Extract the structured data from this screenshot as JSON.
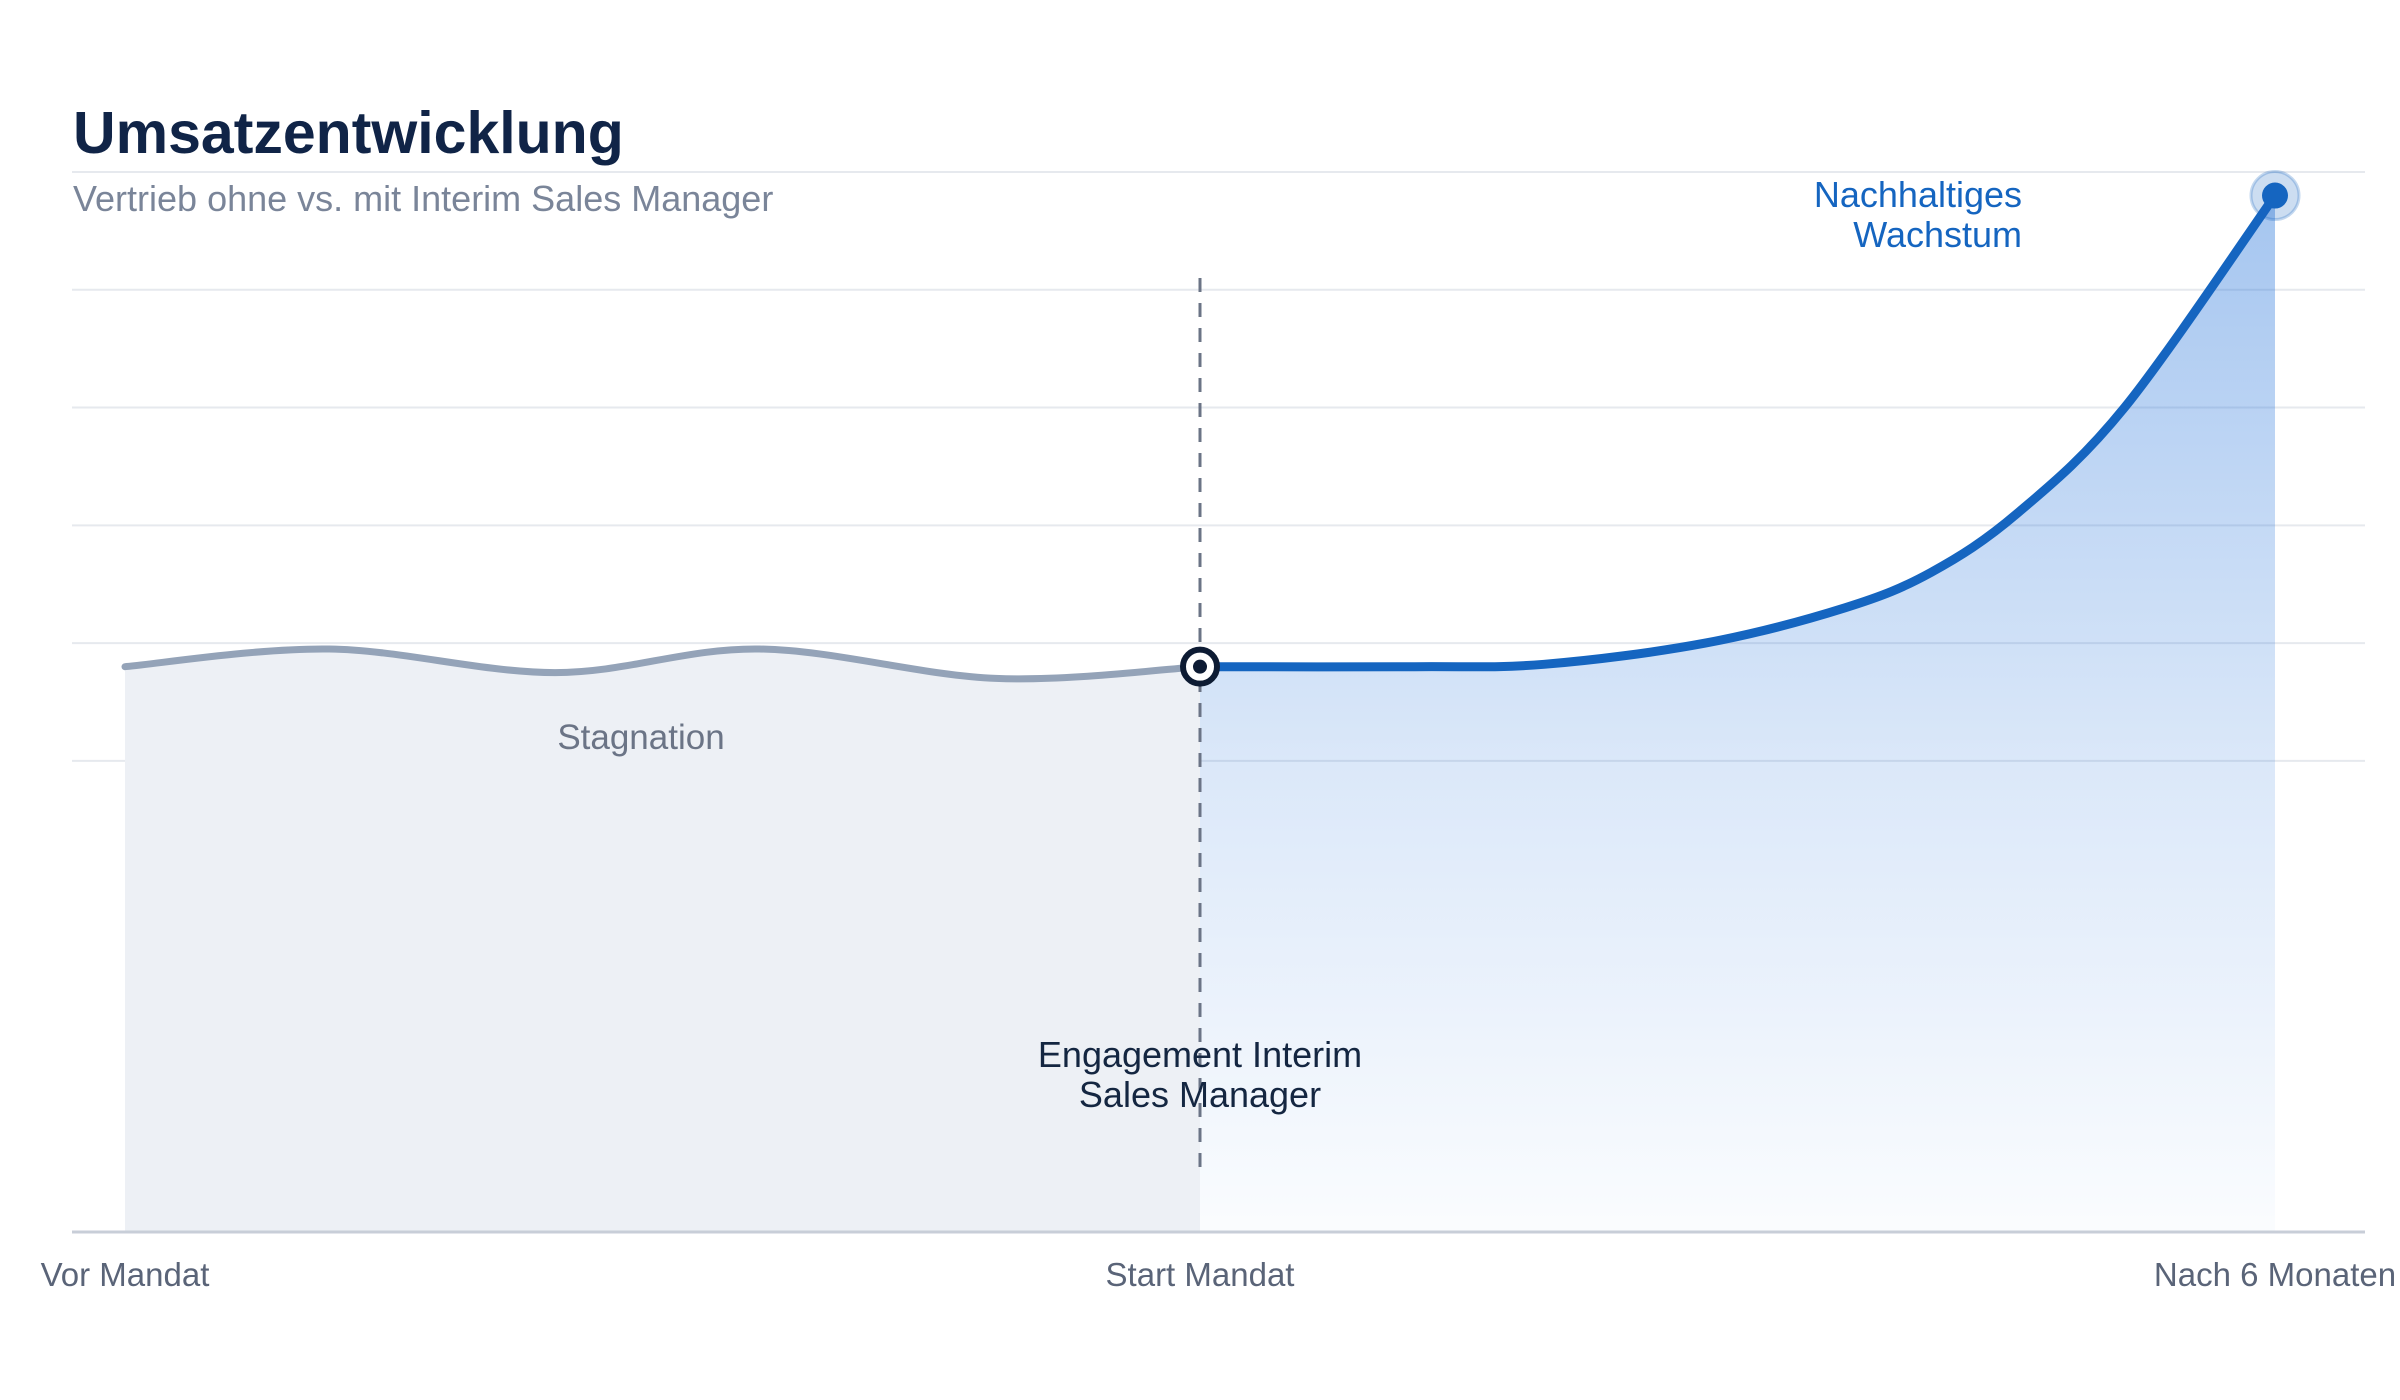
{
  "chart_data": {
    "type": "line",
    "title": "Umsatzentwicklung",
    "subtitle": "Vertrieb ohne vs. mit Interim Sales Manager",
    "xlabel": "",
    "ylabel": "",
    "x_ticks": [
      {
        "x": 0,
        "label": "Vor Mandat"
      },
      {
        "x": 1,
        "label": "Start Mandat"
      },
      {
        "x": 2,
        "label": "Nach 6 Monaten"
      }
    ],
    "xlim": [
      0,
      2
    ],
    "ylim": [
      0,
      9
    ],
    "grid": true,
    "legend": "none",
    "series": [
      {
        "color": "#94a3b8",
        "points": [
          [
            0,
            4.8
          ],
          [
            0.19,
            4.95
          ],
          [
            0.4,
            4.75
          ],
          [
            0.59,
            4.95
          ],
          [
            0.81,
            4.7
          ],
          [
            1.0,
            4.8
          ]
        ]
      },
      {
        "color": "#1565c0",
        "points": [
          [
            1.0,
            4.8
          ],
          [
            1.2,
            4.8
          ],
          [
            1.32,
            4.82
          ],
          [
            1.47,
            5.0
          ],
          [
            1.6,
            5.3
          ],
          [
            1.68,
            5.6
          ],
          [
            1.76,
            6.1
          ],
          [
            1.86,
            7.0
          ],
          [
            2.0,
            8.8
          ]
        ]
      }
    ],
    "annotations": [
      {
        "id": "stagnation",
        "text": "Stagnation",
        "x": 0.48,
        "y": 4.1
      },
      {
        "id": "engagement",
        "lines": [
          "Engagement Interim",
          "Sales Manager"
        ],
        "x": 1.0,
        "y": 1.4
      },
      {
        "id": "wachstum",
        "lines": [
          "Nachhaltiges",
          "Wachstum"
        ],
        "x": 1.77,
        "y": 10.2
      }
    ],
    "marker_start": {
      "x": 1.0,
      "y": 4.8
    },
    "marker_end": {
      "x": 2.0,
      "y": 8.8
    }
  }
}
